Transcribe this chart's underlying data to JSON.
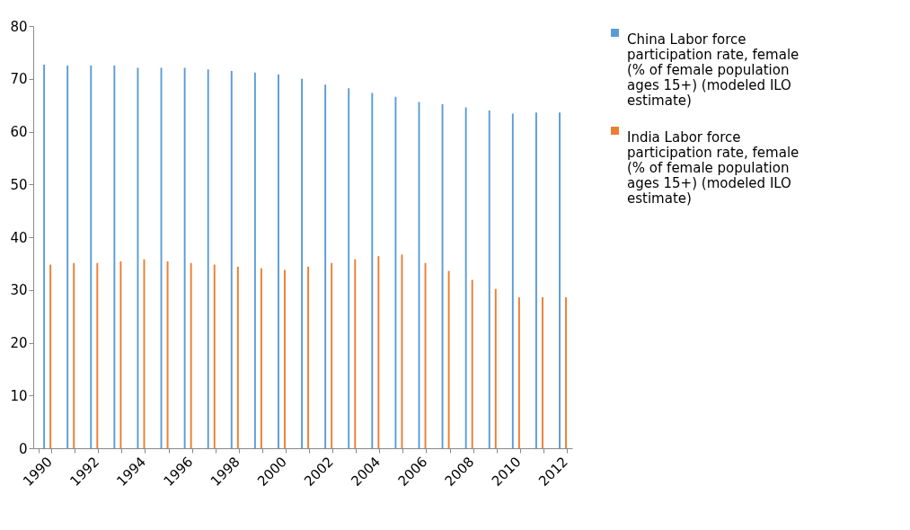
{
  "chart_data": {
    "type": "bar",
    "categories": [
      "1990",
      null,
      "1992",
      null,
      "1994",
      null,
      "1996",
      null,
      "1998",
      null,
      "2000",
      null,
      "2002",
      null,
      "2004",
      null,
      "2006",
      null,
      "2008",
      null,
      "2010",
      null,
      "2012"
    ],
    "series": [
      {
        "name": "China Labor force participation rate, female (% of female population ages 15+) (modeled ILO estimate)",
        "color": "#5b9bd5",
        "values": [
          72.7,
          72.5,
          72.5,
          72.5,
          72.1,
          72.1,
          72.1,
          71.8,
          71.5,
          71.2,
          70.8,
          70.0,
          68.9,
          68.2,
          67.3,
          66.6,
          65.6,
          65.2,
          64.6,
          64.0,
          63.4,
          63.6,
          63.6
        ]
      },
      {
        "name": "India Labor force participation rate, female (% of female population ages 15+) (modeled ILO estimate)",
        "color": "#ed7d31",
        "values": [
          34.8,
          35.1,
          35.1,
          35.4,
          35.8,
          35.4,
          35.1,
          34.8,
          34.4,
          34.1,
          33.8,
          34.4,
          35.1,
          35.8,
          36.4,
          36.7,
          35.1,
          33.6,
          31.9,
          30.2,
          28.6,
          28.6,
          28.6
        ]
      }
    ],
    "ylim": [
      0,
      80
    ],
    "yticks": [
      0,
      10,
      20,
      30,
      40,
      50,
      60,
      70,
      80
    ],
    "grid": false,
    "legend": "right"
  }
}
